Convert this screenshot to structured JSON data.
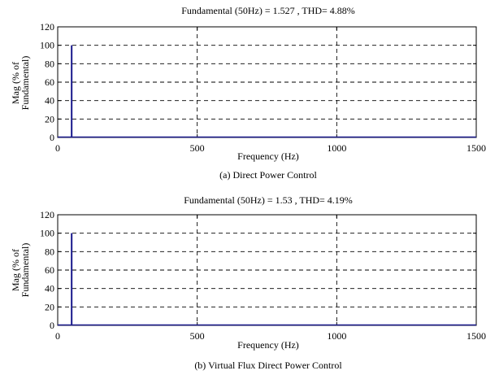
{
  "chart_data": [
    {
      "type": "bar",
      "title": "Fundamental (50Hz) = 1.527 , THD= 4.88%",
      "caption": "(a) Direct Power Control",
      "xlabel": "Frequency (Hz)",
      "ylabel_lines": [
        "Mag (% of",
        "Fundamental)"
      ],
      "xlim": [
        0,
        1500
      ],
      "ylim": [
        0,
        120
      ],
      "xticks": [
        "0",
        "500",
        "1000",
        "1500"
      ],
      "yticks": [
        "0",
        "20",
        "40",
        "60",
        "80",
        "100",
        "120"
      ],
      "grid": true,
      "series": [
        {
          "x": [
            50,
            250
          ],
          "values": [
            100,
            0.8
          ]
        }
      ]
    },
    {
      "type": "bar",
      "title": "Fundamental (50Hz) = 1.53 , THD= 4.19%",
      "caption": "(b) Virtual Flux Direct Power Control",
      "xlabel": "Frequency (Hz)",
      "ylabel_lines": [
        "Mag (% of",
        "Fundamental)"
      ],
      "xlim": [
        0,
        1500
      ],
      "ylim": [
        0,
        120
      ],
      "xticks": [
        "0",
        "500",
        "1000",
        "1500"
      ],
      "yticks": [
        "0",
        "20",
        "40",
        "60",
        "80",
        "100",
        "120"
      ],
      "grid": true,
      "series": [
        {
          "x": [
            50,
            250
          ],
          "values": [
            100,
            0.8
          ]
        }
      ]
    }
  ],
  "colors": {
    "bar": "#1a1a8c",
    "axis": "#000000",
    "grid": "#000000"
  }
}
